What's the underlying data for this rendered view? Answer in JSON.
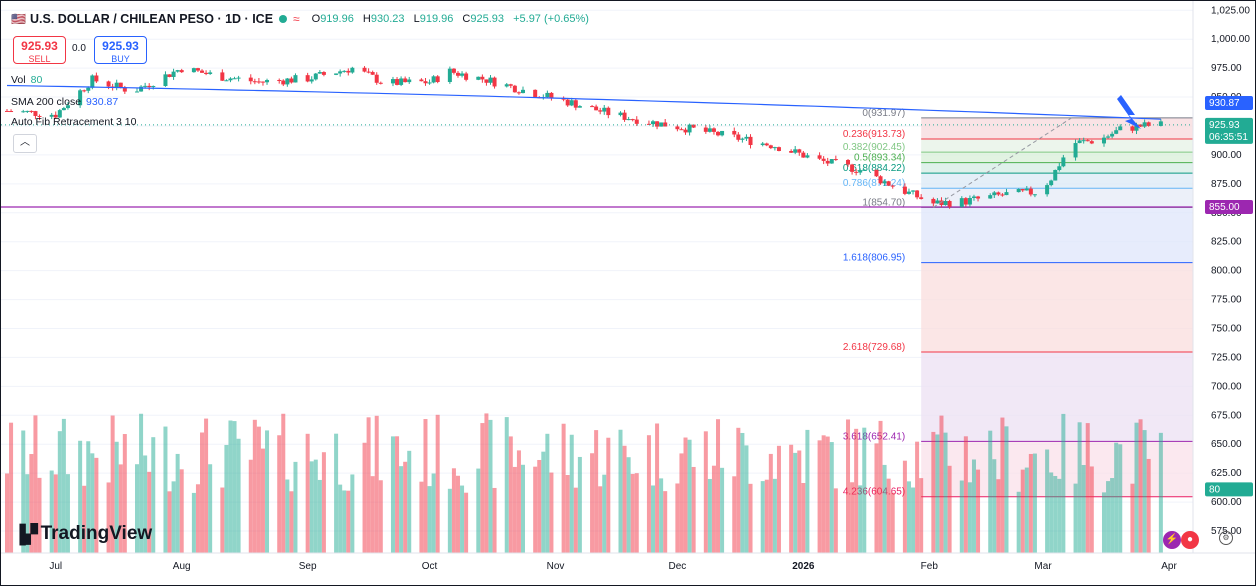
{
  "header": {
    "symbol": "U.S. DOLLAR / CHILEAN PESO · 1D · ICE",
    "open_label": "O",
    "open": "919.96",
    "high_label": "H",
    "high": "930.23",
    "low_label": "L",
    "low": "919.96",
    "close_label": "C",
    "close": "925.93",
    "change": "+5.97 (+0.65%)"
  },
  "trade": {
    "sell_price": "925.93",
    "sell_label": "SELL",
    "spread": "0.0",
    "buy_price": "925.93",
    "buy_label": "BUY"
  },
  "indicators": {
    "vol_label": "Vol",
    "vol_value": "80",
    "sma_label": "SMA 200 close",
    "sma_value": "930.87",
    "fib_label": "Auto Fib Retracement 3 10"
  },
  "collapse_icon": "chevron-up-icon",
  "brand": "TradingView",
  "colors": {
    "up": "#22ab94",
    "down": "#f23645",
    "sma": "#2962ff",
    "support": "#9c27b0"
  },
  "chart_data": {
    "type": "candlestick",
    "y_scale": {
      "min": 556,
      "max": 1033,
      "ticks": [
        575,
        600,
        625,
        650,
        675,
        700,
        725,
        750,
        775,
        800,
        825,
        850,
        875,
        900,
        925,
        950,
        975,
        1000,
        1025
      ]
    },
    "y_tick_labels": [
      "575.00",
      "600.00",
      "625.00",
      "650.00",
      "675.00",
      "700.00",
      "725.00",
      "750.00",
      "775.00",
      "800.00",
      "825.00",
      "850.00",
      "875.00",
      "900.00",
      "925.00",
      "950.00",
      "975.00",
      "1,000.00",
      "1,025.00"
    ],
    "x_labels": [
      "Jul",
      "Aug",
      "Sep",
      "Oct",
      "Nov",
      "Dec",
      "2026",
      "Feb",
      "Mar",
      "Apr"
    ],
    "close_series": [
      {
        "d": "Jun 19",
        "v": 938
      },
      {
        "d": "Jul 01",
        "v": 935
      },
      {
        "d": "Jul 10",
        "v": 965
      },
      {
        "d": "Jul 20",
        "v": 955
      },
      {
        "d": "Aug 01",
        "v": 975
      },
      {
        "d": "Aug 10",
        "v": 968
      },
      {
        "d": "Aug 20",
        "v": 963
      },
      {
        "d": "Sep 01",
        "v": 966
      },
      {
        "d": "Sep 12",
        "v": 975
      },
      {
        "d": "Sep 20",
        "v": 962
      },
      {
        "d": "Oct 01",
        "v": 963
      },
      {
        "d": "Oct 06",
        "v": 972
      },
      {
        "d": "Oct 15",
        "v": 965
      },
      {
        "d": "Oct 25",
        "v": 955
      },
      {
        "d": "Nov 05",
        "v": 945
      },
      {
        "d": "Nov 15",
        "v": 935
      },
      {
        "d": "Nov 25",
        "v": 928
      },
      {
        "d": "Dec 05",
        "v": 922
      },
      {
        "d": "Dec 15",
        "v": 915
      },
      {
        "d": "Dec 25",
        "v": 908
      },
      {
        "d": "Jan 05",
        "v": 895
      },
      {
        "d": "Jan 15",
        "v": 887
      },
      {
        "d": "Jan 25",
        "v": 870
      },
      {
        "d": "Feb 02",
        "v": 858
      },
      {
        "d": "Feb 10",
        "v": 860
      },
      {
        "d": "Feb 20",
        "v": 866
      },
      {
        "d": "Feb 28",
        "v": 868
      },
      {
        "d": "Mar 03",
        "v": 880
      },
      {
        "d": "Mar 08",
        "v": 910
      },
      {
        "d": "Mar 15",
        "v": 913
      },
      {
        "d": "Mar 20",
        "v": 922
      },
      {
        "d": "Mar 25",
        "v": 925
      },
      {
        "d": "Mar 30",
        "v": 925.93
      }
    ],
    "sma200": {
      "name": "SMA 200 close",
      "start": 960,
      "end": 930.87
    },
    "support_line": 855.0,
    "last_price": 925.93,
    "countdown": "06:35:51",
    "volume_last": "80",
    "fib_levels": [
      {
        "label": "0(931.97)",
        "value": 931.97,
        "color": "#787b86"
      },
      {
        "label": "0.236(913.73)",
        "value": 913.73,
        "color": "#f23645"
      },
      {
        "label": "0.382(902.45)",
        "value": 902.45,
        "color": "#81c784"
      },
      {
        "label": "0.5(893.34)",
        "value": 893.34,
        "color": "#4caf50"
      },
      {
        "label": "0.618(884.22)",
        "value": 884.22,
        "color": "#089981"
      },
      {
        "label": "0.786(871.24)",
        "value": 871.24,
        "color": "#64b5f6"
      },
      {
        "label": "1(854.70)",
        "value": 854.7,
        "color": "#787b86"
      },
      {
        "label": "1.618(806.95)",
        "value": 806.95,
        "color": "#2962ff"
      },
      {
        "label": "2.618(729.68)",
        "value": 729.68,
        "color": "#f23645"
      },
      {
        "label": "3.618(652.41)",
        "value": 652.41,
        "color": "#9c27b0"
      },
      {
        "label": "4.236(604.65)",
        "value": 604.65,
        "color": "#e91e63"
      }
    ]
  }
}
